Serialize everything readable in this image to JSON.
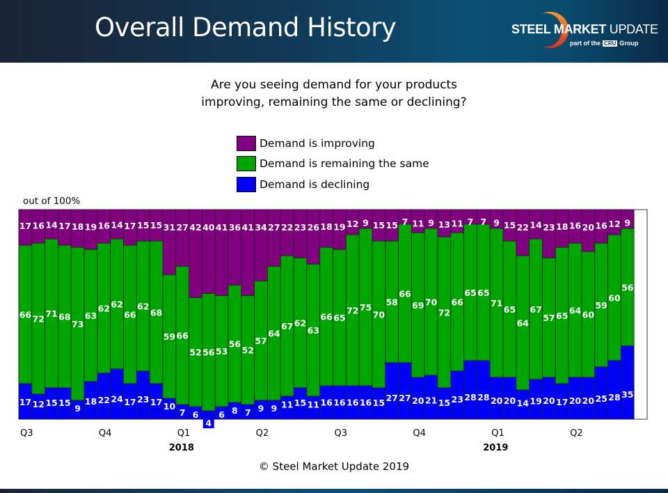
{
  "header": {
    "title": "Overall Demand History",
    "logo_bold": "STEEL MARKET",
    "logo_light": "UPDATE",
    "logo_sub_prefix": "part of the",
    "logo_sub_badge": "CRU",
    "logo_sub_suffix": "Group"
  },
  "question_line1": "Are you seeing demand for your products",
  "question_line2": "improving, remaining the same or declining?",
  "y_note": "out of 100%",
  "copyright": "© Steel Market Update 2019",
  "colors": {
    "improving": "#800080",
    "same": "#00a600",
    "declining": "#0000ff",
    "header_dark": "#1a2537",
    "header_blue": "#0c4f75"
  },
  "chart_data": {
    "type": "bar",
    "stacked": true,
    "title": "Are you seeing demand for your products improving, remaining the same or declining?",
    "ylabel": "out of 100%",
    "ylim": [
      0,
      100
    ],
    "grid": false,
    "legend_position": "top-center",
    "legend": [
      "Demand is improving",
      "Demand is remaining the same",
      "Demand is declining"
    ],
    "quarter_ticks": [
      {
        "index": 0,
        "label": "Q3",
        "year": ""
      },
      {
        "index": 6,
        "label": "Q4",
        "year": ""
      },
      {
        "index": 12,
        "label": "Q1",
        "year": "2018"
      },
      {
        "index": 18,
        "label": "Q2",
        "year": ""
      },
      {
        "index": 24,
        "label": "Q3",
        "year": ""
      },
      {
        "index": 30,
        "label": "Q4",
        "year": ""
      },
      {
        "index": 36,
        "label": "Q1",
        "year": "2019"
      },
      {
        "index": 42,
        "label": "Q2",
        "year": ""
      }
    ],
    "series": [
      {
        "name": "Demand is declining",
        "key": "declining",
        "values": [
          17,
          12,
          15,
          15,
          9,
          18,
          22,
          24,
          17,
          23,
          17,
          10,
          7,
          6,
          4,
          6,
          8,
          7,
          9,
          9,
          11,
          15,
          11,
          16,
          16,
          16,
          16,
          15,
          27,
          27,
          20,
          21,
          15,
          23,
          28,
          28,
          20,
          20,
          14,
          19,
          20,
          17,
          20,
          20,
          25,
          28,
          35,
          null
        ]
      },
      {
        "name": "Demand is remaining the same",
        "key": "same",
        "values": [
          66,
          72,
          71,
          68,
          73,
          63,
          62,
          62,
          66,
          62,
          68,
          59,
          66,
          52,
          56,
          53,
          56,
          52,
          57,
          64,
          67,
          62,
          63,
          66,
          65,
          72,
          75,
          70,
          58,
          66,
          69,
          70,
          72,
          66,
          65,
          65,
          71,
          65,
          64,
          67,
          57,
          65,
          64,
          60,
          59,
          60,
          56,
          null
        ]
      },
      {
        "name": "Demand is improving",
        "key": "improving",
        "values": [
          17,
          16,
          14,
          17,
          18,
          19,
          16,
          14,
          17,
          15,
          15,
          31,
          27,
          42,
          40,
          41,
          36,
          41,
          34,
          27,
          22,
          23,
          26,
          18,
          19,
          12,
          9,
          15,
          15,
          7,
          11,
          9,
          13,
          11,
          7,
          7,
          9,
          15,
          22,
          14,
          23,
          18,
          16,
          20,
          16,
          12,
          9,
          null
        ]
      }
    ]
  }
}
